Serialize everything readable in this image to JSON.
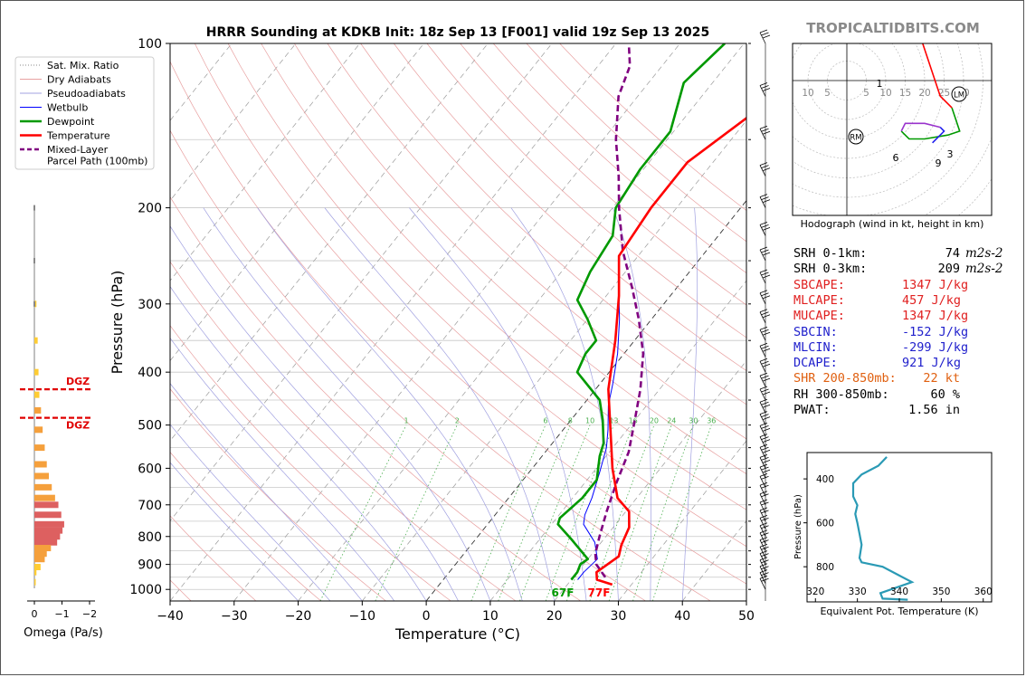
{
  "title": "HRRR Sounding at KDKB Init: 18z Sep 13 [F001] valid 19z Sep 13 2025",
  "watermark": "TROPICALTIDBITS.COM",
  "colors": {
    "temperature": "#ff0000",
    "dewpoint": "#009900",
    "wetbulb": "#0000ff",
    "parcel": "#800080",
    "dry_adiabat": "#e8a0a0",
    "pseudoadiabat": "#a0a0e0",
    "mixing_ratio": "#4caf50",
    "red_text": "#e02020",
    "blue_text": "#2020cc",
    "orange_text": "#e06010",
    "omega_light": "#ffcc33",
    "omega_mid": "#f5a03c",
    "omega_strong": "#dd6060",
    "theta": "#2a9ab5"
  },
  "legend": [
    {
      "label": "Sat. Mix. Ratio",
      "style": "dotted"
    },
    {
      "label": "Dry Adiabats",
      "style": "thin-red"
    },
    {
      "label": "Pseudoadiabats",
      "style": "thin-blue"
    },
    {
      "label": "Wetbulb",
      "style": "blue"
    },
    {
      "label": "Dewpoint",
      "style": "green"
    },
    {
      "label": "Temperature",
      "style": "red"
    },
    {
      "label": "Mixed-Layer",
      "style": "purple-dashed"
    },
    {
      "label": "Parcel Path (100mb)",
      "style": "none"
    }
  ],
  "main_chart": {
    "xlabel": "Temperature (°C)",
    "ylabel": "Pressure (hPa)",
    "x_ticks": [
      "−40",
      "−30",
      "−20",
      "−10",
      "0",
      "10",
      "20",
      "30",
      "40",
      "50"
    ],
    "y_ticks": [
      "100",
      "200",
      "300",
      "400",
      "500",
      "600",
      "700",
      "800",
      "900",
      "1000"
    ],
    "surface_dewpoint_label": "67F",
    "surface_temperature_label": "77F",
    "mixing_ratio_labels": [
      "1",
      "2",
      "6",
      "8",
      "10",
      "13",
      "16",
      "20",
      "24",
      "30",
      "36"
    ]
  },
  "omega_chart": {
    "xlabel": "Omega (Pa/s)",
    "x_ticks": [
      "0",
      "−1",
      "−2"
    ],
    "dgz_label": "DGZ"
  },
  "hodograph": {
    "caption": "Hodograph (wind in kt, height in km)",
    "ring_labels": [
      "10",
      "5",
      "5",
      "10",
      "15",
      "20",
      "25",
      "30"
    ],
    "height_labels": [
      "1",
      "3",
      "6",
      "9"
    ],
    "markers": [
      "LM",
      "RM"
    ]
  },
  "indices": [
    {
      "label": "SRH 0-1km:",
      "value": "74",
      "unit": "m2s-2",
      "color": "black"
    },
    {
      "label": "SRH 0-3km:",
      "value": "209",
      "unit": "m2s-2",
      "color": "black"
    },
    {
      "label": "SBCAPE:",
      "value": "1347 J/kg",
      "color": "red"
    },
    {
      "label": "MLCAPE:",
      "value": "457 J/kg",
      "color": "red"
    },
    {
      "label": "MUCAPE:",
      "value": "1347 J/kg",
      "color": "red"
    },
    {
      "label": "SBCIN:",
      "value": "-152 J/kg",
      "color": "blue"
    },
    {
      "label": "MLCIN:",
      "value": "-299 J/kg",
      "color": "blue"
    },
    {
      "label": "DCAPE:",
      "value": "921 J/kg",
      "color": "blue"
    },
    {
      "label": "SHR 200-850mb:",
      "value": "22 kt",
      "color": "orange"
    },
    {
      "label": "RH 300-850mb:",
      "value": "60 %",
      "color": "black"
    },
    {
      "label": "PWAT:",
      "value": "1.56 in",
      "color": "black"
    }
  ],
  "theta_chart": {
    "xlabel": "Equivalent Pot. Temperature (K)",
    "ylabel": "Pressure (hPa)",
    "x_ticks": [
      "320",
      "330",
      "340",
      "350",
      "360"
    ],
    "y_ticks": [
      "400",
      "600",
      "800"
    ]
  },
  "chart_data": [
    {
      "type": "line",
      "title": "HRRR Sounding at KDKB Init: 18z Sep 13 [F001] valid 19z Sep 13 2025",
      "xlabel": "Temperature (°C)",
      "ylabel": "Pressure (hPa)",
      "xlim": [
        -40,
        50
      ],
      "ylim": [
        1050,
        100
      ],
      "y_scale": "log",
      "series": [
        {
          "name": "Temperature",
          "points": [
            [
              27,
              980
            ],
            [
              24,
              960
            ],
            [
              23,
              930
            ],
            [
              24.5,
              870
            ],
            [
              23.5,
              830
            ],
            [
              22.5,
              770
            ],
            [
              20.5,
              720
            ],
            [
              17,
              680
            ],
            [
              12.5,
              600
            ],
            [
              8,
              520
            ],
            [
              2,
              430
            ],
            [
              -3,
              350
            ],
            [
              -8,
              290
            ],
            [
              -13,
              245
            ],
            [
              -14,
              200
            ],
            [
              -14,
              165
            ],
            [
              -10,
              135
            ],
            [
              -5,
              115
            ],
            [
              -1,
              100
            ]
          ]
        },
        {
          "name": "Dewpoint",
          "points": [
            [
              20,
              960
            ],
            [
              20,
              930
            ],
            [
              19.5,
              900
            ],
            [
              20,
              880
            ],
            [
              15,
              810
            ],
            [
              11,
              760
            ],
            [
              10.5,
              740
            ],
            [
              11.5,
              680
            ],
            [
              11.5,
              630
            ],
            [
              9,
              570
            ],
            [
              8,
              540
            ],
            [
              5,
              490
            ],
            [
              2,
              450
            ],
            [
              -5,
              400
            ],
            [
              -6,
              370
            ],
            [
              -6,
              350
            ],
            [
              -10,
              320
            ],
            [
              -14,
              295
            ],
            [
              -15.5,
              262
            ],
            [
              -16.5,
              225
            ],
            [
              -19.5,
              200
            ],
            [
              -20.5,
              170
            ],
            [
              -20.5,
              145
            ],
            [
              -24.5,
              118
            ],
            [
              -23,
              100
            ]
          ]
        },
        {
          "name": "Wetbulb",
          "points": [
            [
              21,
              960
            ],
            [
              21,
              930
            ],
            [
              21.5,
              880
            ],
            [
              19,
              820
            ],
            [
              15,
              760
            ],
            [
              14,
              730
            ],
            [
              13,
              680
            ],
            [
              11,
              610
            ],
            [
              9,
              550
            ],
            [
              7,
              510
            ],
            [
              4,
              460
            ],
            [
              2,
              420
            ],
            [
              -1,
              370
            ],
            [
              -5,
              320
            ],
            [
              -8,
              290
            ]
          ]
        },
        {
          "name": "Mixed-Layer Parcel Path (100mb)",
          "points": [
            [
              25,
              950
            ],
            [
              22,
              900
            ],
            [
              20.5,
              860
            ],
            [
              19,
              800
            ],
            [
              17,
              720
            ],
            [
              15,
              640
            ],
            [
              13,
              560
            ],
            [
              10,
              490
            ],
            [
              7,
              430
            ],
            [
              3,
              370
            ],
            [
              -2,
              320
            ],
            [
              -7,
              280
            ],
            [
              -13,
              240
            ],
            [
              -19,
              200
            ],
            [
              -23,
              175
            ],
            [
              -28,
              150
            ],
            [
              -33,
              125
            ],
            [
              -35,
              110
            ],
            [
              -38,
              100
            ]
          ]
        }
      ]
    },
    {
      "type": "bar",
      "xlabel": "Omega (Pa/s)",
      "xlim": [
        0,
        -2
      ],
      "pressures": [
        300,
        350,
        400,
        440,
        470,
        510,
        550,
        590,
        620,
        650,
        680,
        700,
        730,
        760,
        780,
        800,
        820,
        840,
        860,
        880,
        910,
        930,
        970
      ],
      "values": [
        -0.05,
        -0.08,
        -0.1,
        -0.12,
        -0.16,
        -0.2,
        -0.25,
        -0.3,
        -0.35,
        -0.42,
        -0.5,
        -0.58,
        -0.65,
        -0.72,
        -0.68,
        -0.62,
        -0.55,
        -0.4,
        -0.3,
        -0.25,
        -0.15,
        -0.05,
        -0.02
      ]
    },
    {
      "type": "line",
      "xlabel": "Equivalent Pot. Temperature (K)",
      "ylabel": "Pressure (hPa)",
      "xlim": [
        318,
        362
      ],
      "ylim": [
        960,
        280
      ],
      "series": [
        {
          "name": "Theta-e",
          "points": [
            [
              342,
              950
            ],
            [
              336,
              945
            ],
            [
              335.5,
              920
            ],
            [
              343,
              870
            ],
            [
              340,
              840
            ],
            [
              336,
              800
            ],
            [
              331,
              780
            ],
            [
              330.5,
              760
            ],
            [
              331,
              700
            ],
            [
              330.5,
              650
            ],
            [
              330,
              600
            ],
            [
              329.5,
              560
            ],
            [
              330,
              520
            ],
            [
              329,
              480
            ],
            [
              329,
              420
            ],
            [
              331,
              380
            ],
            [
              335,
              340
            ],
            [
              337,
              300
            ]
          ]
        }
      ]
    },
    {
      "type": "line",
      "title": "Hodograph (wind in kt, height in km)",
      "series": [
        {
          "name": "0-1 km",
          "points": [
            [
              -1,
              30
            ],
            [
              3,
              30
            ],
            [
              7,
              26
            ],
            [
              8,
              24
            ],
            [
              9,
              18
            ],
            [
              10,
              16
            ]
          ]
        },
        {
          "name": "1-3 km",
          "points": [
            [
              10,
              16
            ],
            [
              16,
              14
            ],
            [
              18,
              16
            ],
            [
              20,
              17
            ],
            [
              19,
              11
            ],
            [
              21,
              5
            ],
            [
              24,
              -4
            ],
            [
              27,
              -7
            ]
          ]
        },
        {
          "name": "3-6 km",
          "points": [
            [
              27,
              -7
            ],
            [
              29,
              -13
            ],
            [
              26,
              -14
            ],
            [
              20,
              -15
            ],
            [
              16,
              -15
            ],
            [
              14,
              -13
            ]
          ]
        },
        {
          "name": "6-9 km",
          "points": [
            [
              14,
              -13
            ],
            [
              15,
              -11
            ],
            [
              20,
              -11
            ],
            [
              24,
              -12
            ]
          ]
        },
        {
          "name": "9+ km",
          "points": [
            [
              24,
              -12
            ],
            [
              25,
              -13
            ],
            [
              22,
              -16
            ]
          ]
        }
      ]
    }
  ]
}
